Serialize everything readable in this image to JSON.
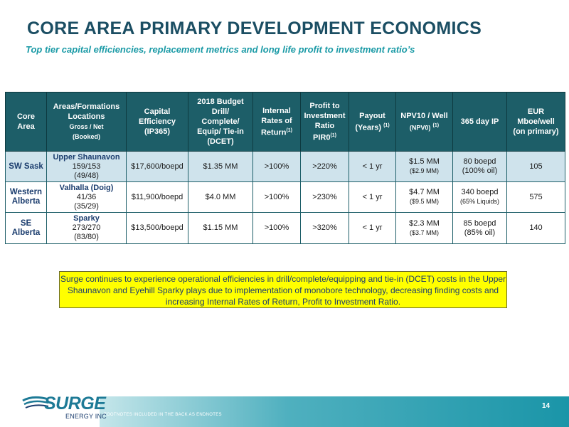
{
  "title": "CORE AREA PRIMARY DEVELOPMENT ECONOMICS",
  "subtitle": "Top tier capital efficiencies, replacement metrics and long life profit to investment ratio’s",
  "table": {
    "headers": {
      "core_area": [
        "Core",
        "Area"
      ],
      "areas": [
        "Areas/Formations",
        "Locations"
      ],
      "areas_small": [
        "Gross / Net",
        "(Booked)"
      ],
      "capital": [
        "Capital",
        "Efficiency",
        "(IP365)"
      ],
      "budget": [
        "2018 Budget",
        "Drill/",
        "Complete/",
        "Equip/ Tie-in",
        "(DCET)"
      ],
      "irr": [
        "Internal",
        "Rates of",
        "Return"
      ],
      "irr_sup": "(1)",
      "pir": [
        "Profit to",
        "Investment",
        "Ratio",
        "PIR0"
      ],
      "pir_sup": "(1)",
      "payout": "Payout",
      "payout_years": "(Years)",
      "payout_sup": "(1)",
      "npv": "NPV10 / Well",
      "npv_small": "(NPV0)",
      "npv_sup": "(1)",
      "ip": "365 day IP",
      "eur": [
        "EUR",
        "Mboe/well",
        "(on primary)"
      ]
    },
    "rows": [
      {
        "core_area": "SW Sask",
        "formation": "Upper Shaunavon",
        "locations": "159/153",
        "booked": "(49/48)",
        "capital_efficiency": "$17,600/boepd",
        "budget": "$1.35 MM",
        "irr": ">100%",
        "pir": ">220%",
        "payout": "< 1 yr",
        "npv10": "$1.5 MM",
        "npv0": "($2.9 MM)",
        "ip": "80 boepd",
        "ip_detail": "(100% oil)",
        "eur": "105"
      },
      {
        "core_area": "Western Alberta",
        "formation": "Valhalla (Doig)",
        "locations": "41/36",
        "booked": "(35/29)",
        "capital_efficiency": "$11,900/boepd",
        "budget": "$4.0 MM",
        "irr": ">100%",
        "pir": ">230%",
        "payout": "< 1 yr",
        "npv10": "$4.7 MM",
        "npv0": "($9.5 MM)",
        "ip": "340 boepd",
        "ip_detail": "(65% Liquids)",
        "eur": "575"
      },
      {
        "core_area": "SE Alberta",
        "formation": "Sparky",
        "locations": "273/270",
        "booked": "(83/80)",
        "capital_efficiency": "$13,500/boepd",
        "budget": "$1.15 MM",
        "irr": ">100%",
        "pir": ">320%",
        "payout": "< 1 yr",
        "npv10": "$2.3 MM",
        "npv0": "($3.7 MM)",
        "ip": "85 boepd",
        "ip_detail": "(85% oil)",
        "eur": "140"
      }
    ]
  },
  "note": "Surge continues to experience operational efficiencies in drill/complete/equipping and tie-in (DCET) costs in the Upper Shaunavon and Eyehill Sparky plays due to implementation of monobore technology, decreasing finding costs and increasing Internal Rates of Return, Profit to Investment Ratio.",
  "logo": {
    "word": "SURGE",
    "tagline": "ENERGY INC"
  },
  "footer": {
    "note": "FOOTNOTES INCLUDED IN THE BACK AS ENDNOTES",
    "page": "14"
  },
  "colors": {
    "title": "#1b4e63",
    "subtitle": "#1a9aa6",
    "header_bg": "#1d5e68",
    "row_highlight": "#cfe3ec",
    "note_bg": "#ffff00"
  }
}
